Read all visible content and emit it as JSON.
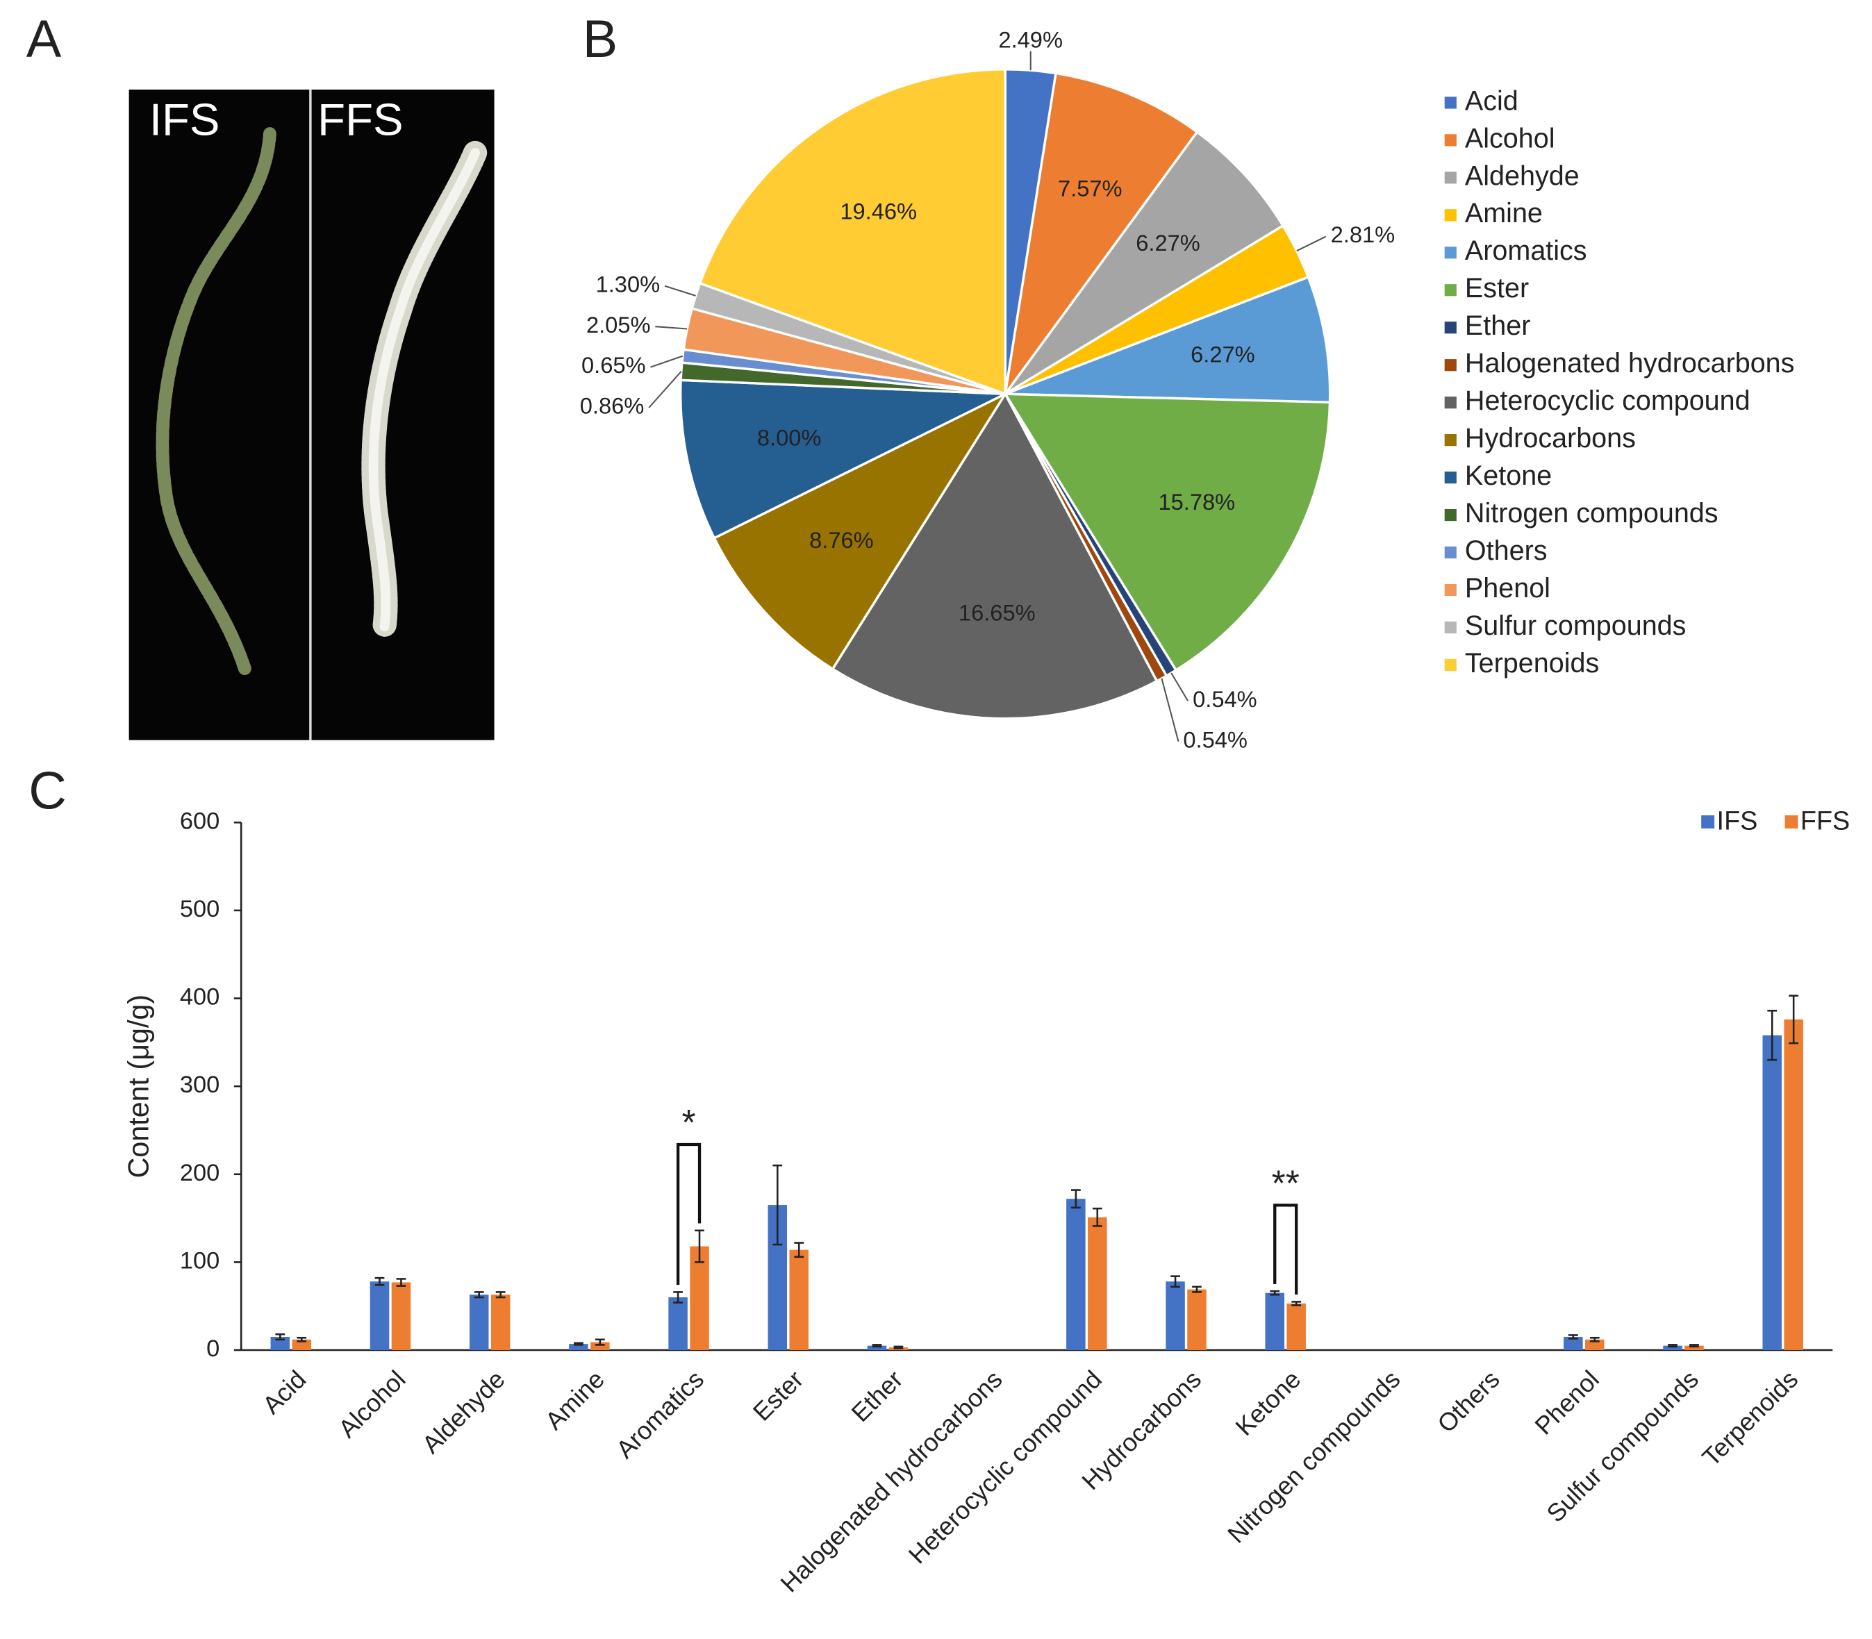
{
  "panels": {
    "a": "A",
    "b": "B",
    "c": "C"
  },
  "photo": {
    "labels": [
      "IFS",
      "FFS"
    ]
  },
  "chart_data": [
    {
      "type": "pie",
      "categories": [
        "Acid",
        "Alcohol",
        "Aldehyde",
        "Amine",
        "Aromatics",
        "Ester",
        "Ether",
        "Halogenated hydrocarbons",
        "Heterocyclic compound",
        "Hydrocarbons",
        "Ketone",
        "Nitrogen compounds",
        "Others",
        "Phenol",
        "Sulfur compounds",
        "Terpenoids"
      ],
      "values": [
        2.49,
        7.57,
        6.27,
        2.81,
        6.27,
        15.78,
        0.54,
        0.54,
        16.65,
        8.76,
        8.0,
        0.86,
        0.65,
        2.05,
        1.3,
        19.46
      ],
      "value_labels": [
        "2.49%",
        "7.57%",
        "6.27%",
        "2.81%",
        "6.27%",
        "15.78%",
        "0.54%",
        "0.54%",
        "16.65%",
        "8.76%",
        "8.00%",
        "0.86%",
        "0.65%",
        "2.05%",
        "1.30%",
        "19.46%"
      ],
      "colors": [
        "#4472c4",
        "#ed7d31",
        "#a5a5a5",
        "#ffc000",
        "#5b9bd5",
        "#70ad47",
        "#264478",
        "#9e480e",
        "#636363",
        "#997300",
        "#255e91",
        "#43682b",
        "#698ed0",
        "#f1975a",
        "#b7b7b7",
        "#ffcd33"
      ],
      "legend": "right"
    },
    {
      "type": "bar",
      "categories": [
        "Acid",
        "Alcohol",
        "Aldehyde",
        "Amine",
        "Aromatics",
        "Ester",
        "Ether",
        "Halogenated hydrocarbons",
        "Heterocyclic compound",
        "Hydrocarbons",
        "Ketone",
        "Nitrogen compounds",
        "Others",
        "Phenol",
        "Sulfur compounds",
        "Terpenoids"
      ],
      "series": [
        {
          "name": "IFS",
          "color": "#4472c4",
          "values": [
            15,
            78,
            63,
            7,
            60,
            165,
            5,
            0,
            172,
            78,
            65,
            0,
            0,
            15,
            5,
            358
          ],
          "errors": [
            3,
            4,
            3,
            1,
            6,
            45,
            1,
            0,
            10,
            6,
            2,
            0,
            0,
            2,
            1,
            28
          ]
        },
        {
          "name": "FFS",
          "color": "#ed7d31",
          "values": [
            12,
            77,
            63,
            9,
            118,
            114,
            3,
            0,
            151,
            69,
            53,
            0,
            0,
            12,
            5,
            376
          ],
          "errors": [
            2,
            4,
            3,
            3,
            18,
            8,
            1,
            0,
            10,
            3,
            2,
            0,
            0,
            2,
            1,
            27
          ]
        }
      ],
      "y_label": "Content (μg/g)",
      "ylim": [
        0,
        600
      ],
      "yticks": [
        0,
        100,
        200,
        300,
        400,
        500,
        600
      ],
      "annotations": [
        "*",
        "**"
      ],
      "legend": "top-right"
    }
  ]
}
